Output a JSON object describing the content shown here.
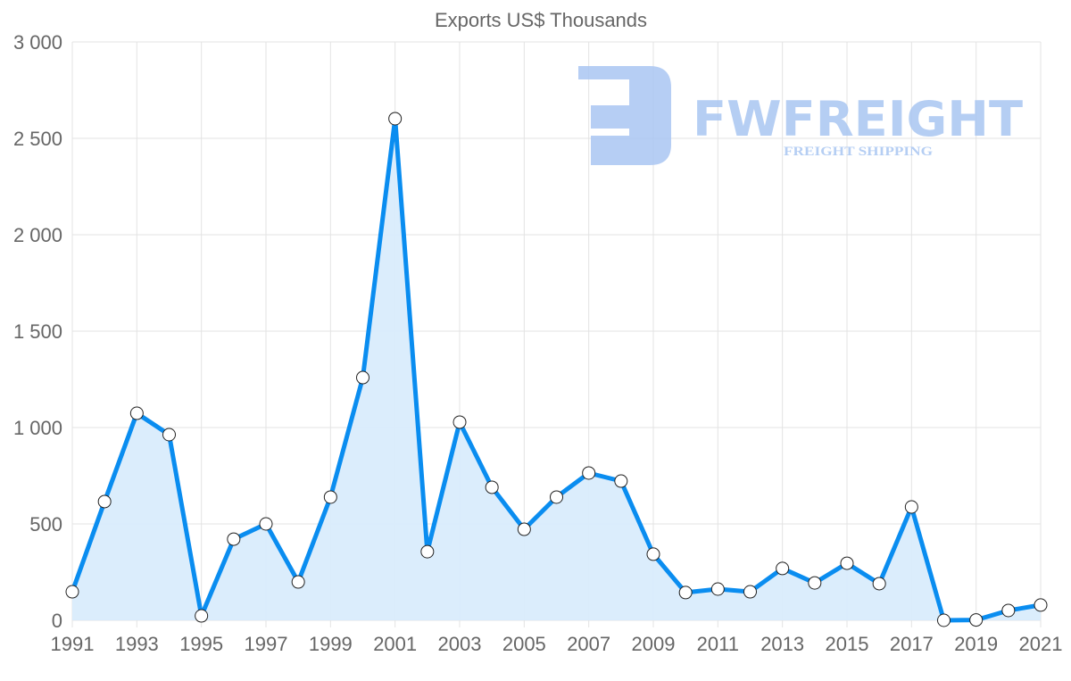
{
  "chart_data": {
    "type": "area",
    "title": "Exports US$ Thousands",
    "xlabel": "",
    "ylabel": "",
    "x": [
      1991,
      1992,
      1993,
      1994,
      1995,
      1996,
      1997,
      1998,
      1999,
      2000,
      2001,
      2002,
      2003,
      2004,
      2005,
      2006,
      2007,
      2008,
      2009,
      2010,
      2011,
      2012,
      2013,
      2014,
      2015,
      2016,
      2017,
      2018,
      2019,
      2020,
      2021
    ],
    "series": [
      {
        "name": "Exports US$ Thousands",
        "values": [
          148,
          616,
          1074,
          963,
          23,
          421,
          500,
          199,
          639,
          1259,
          2602,
          356,
          1028,
          690,
          472,
          639,
          764,
          722,
          343,
          144,
          162,
          148,
          269,
          194,
          296,
          190,
          588,
          0,
          2,
          51,
          79
        ]
      }
    ],
    "ylim": [
      0,
      3000
    ],
    "xlim": [
      1991,
      2021
    ],
    "y_ticks": [
      "0",
      "500",
      "1 000",
      "1 500",
      "2 000",
      "2 500",
      "3 000"
    ],
    "y_tick_values": [
      0,
      500,
      1000,
      1500,
      2000,
      2500,
      3000
    ],
    "x_ticks": [
      "1991",
      "1993",
      "1995",
      "1997",
      "1999",
      "2001",
      "2003",
      "2005",
      "2007",
      "2009",
      "2011",
      "2013",
      "2015",
      "2017",
      "2019",
      "2021"
    ],
    "grid": true,
    "legend": "none",
    "colors": {
      "line": "#0a8df0",
      "fill": "#d9ecfc",
      "grid": "#e3e3e3",
      "point_fill": "#ffffff",
      "point_stroke": "#222222"
    }
  },
  "watermark": {
    "brand": "FWFREIGHT",
    "tagline": "FREIGHT SHIPPING",
    "color": "#a9c6f2"
  }
}
